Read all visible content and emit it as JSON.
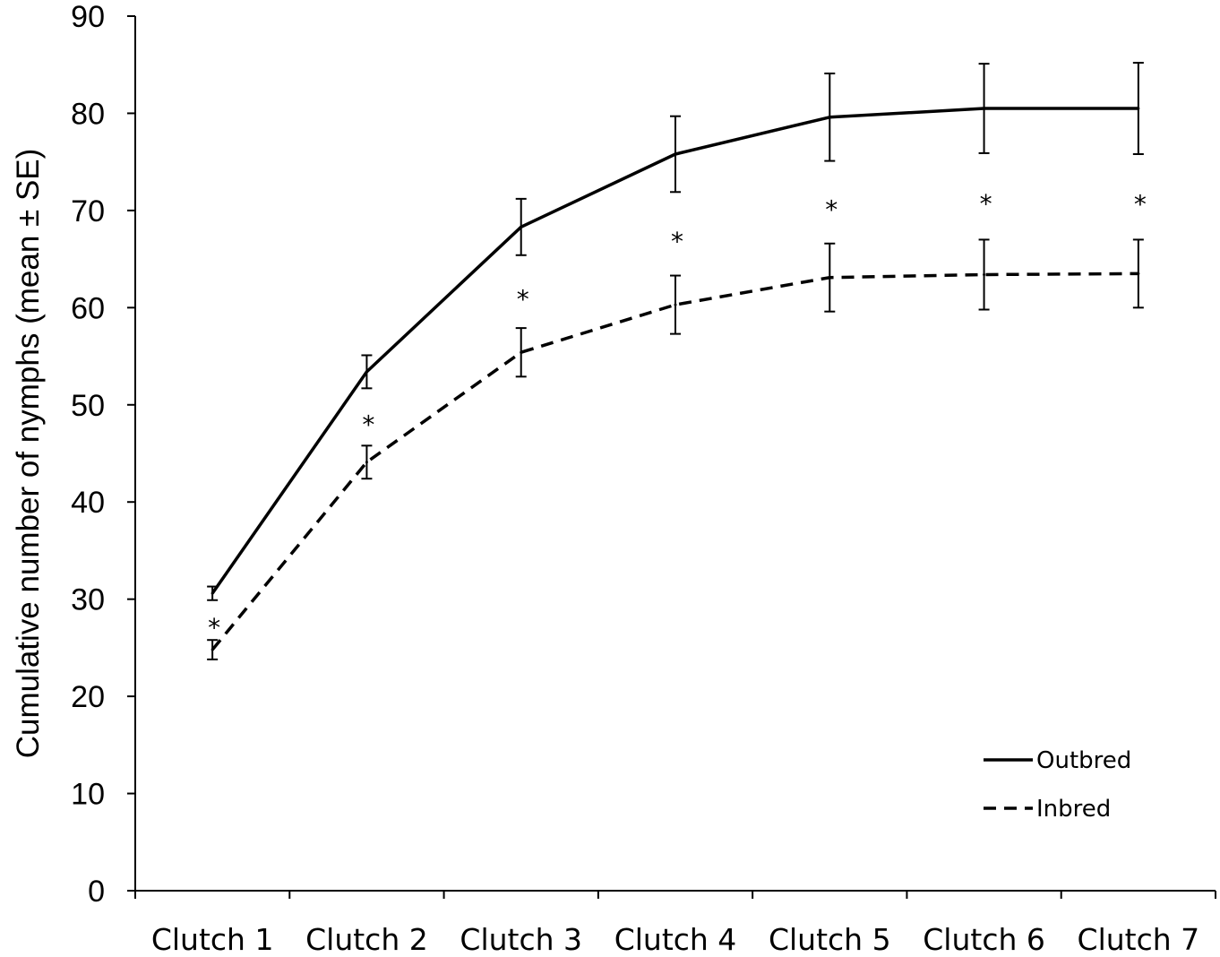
{
  "chart_data": {
    "type": "line",
    "ylabel": "Cumulative number of nymphs (mean ± SE)",
    "xlabel": "",
    "ylim": [
      0,
      90
    ],
    "yticks": [
      0,
      10,
      20,
      30,
      40,
      50,
      60,
      70,
      80,
      90
    ],
    "categories": [
      "Clutch 1",
      "Clutch 2",
      "Clutch 3",
      "Clutch 4",
      "Clutch 5",
      "Clutch 6",
      "Clutch 7"
    ],
    "series": [
      {
        "name": "Outbred",
        "line_style": "solid",
        "color": "#000000",
        "values": [
          30.6,
          53.4,
          68.3,
          75.8,
          79.6,
          80.5,
          80.5
        ],
        "se": [
          0.7,
          1.7,
          2.9,
          3.9,
          4.5,
          4.6,
          4.7
        ]
      },
      {
        "name": "Inbred",
        "line_style": "dashed",
        "color": "#000000",
        "values": [
          24.8,
          44.1,
          55.4,
          60.3,
          63.1,
          63.4,
          63.5
        ],
        "se": [
          1.0,
          1.7,
          2.5,
          3.0,
          3.5,
          3.6,
          3.5
        ]
      }
    ],
    "significance_marker": "*",
    "significant": [
      true,
      true,
      true,
      true,
      true,
      true,
      true
    ],
    "legend": {
      "position": "bottom-right",
      "entries": [
        "Outbred",
        "Inbred"
      ]
    },
    "grid": false
  }
}
